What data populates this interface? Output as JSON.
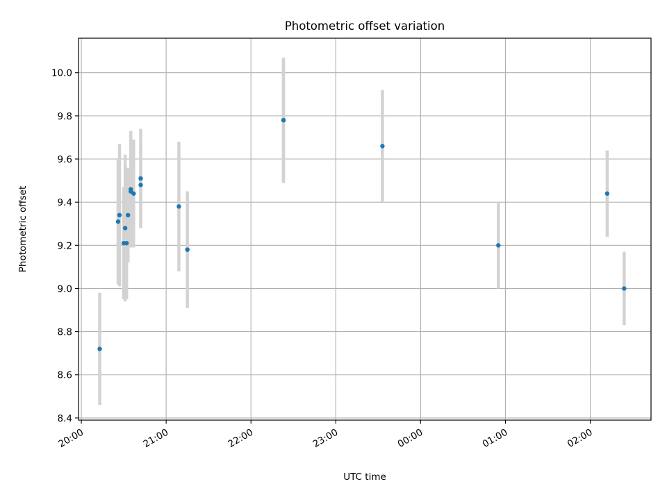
{
  "chart_data": {
    "type": "scatter",
    "title": "Photometric offset variation",
    "xlabel": "UTC time",
    "ylabel": "Photometric offset",
    "x_axis": {
      "kind": "time",
      "range": [
        "20:00",
        "02:40"
      ],
      "ticks": [
        "20:00",
        "21:00",
        "22:00",
        "23:00",
        "00:00",
        "01:00",
        "02:00"
      ]
    },
    "y_axis": {
      "range": [
        8.39,
        10.16
      ],
      "ticks": [
        "8.4",
        "8.6",
        "8.8",
        "9.0",
        "9.2",
        "9.4",
        "9.6",
        "9.8",
        "10.0"
      ]
    },
    "grid": true,
    "legend": false,
    "series": [
      {
        "marker_color": "#1f77b4",
        "errorbar_color": "#d3d3d3",
        "points": [
          {
            "time": "20:13",
            "y": 8.72,
            "yerr_low": 0.26,
            "yerr_high": 0.26
          },
          {
            "time": "20:26",
            "y": 9.31,
            "yerr_low": 0.29,
            "yerr_high": 0.29
          },
          {
            "time": "20:27",
            "y": 9.34,
            "yerr_low": 0.33,
            "yerr_high": 0.33
          },
          {
            "time": "20:30",
            "y": 9.21,
            "yerr_low": 0.26,
            "yerr_high": 0.26
          },
          {
            "time": "20:31",
            "y": 9.28,
            "yerr_low": 0.34,
            "yerr_high": 0.34
          },
          {
            "time": "20:32",
            "y": 9.21,
            "yerr_low": 0.26,
            "yerr_high": 0.26
          },
          {
            "time": "20:33",
            "y": 9.34,
            "yerr_low": 0.22,
            "yerr_high": 0.22
          },
          {
            "time": "20:35",
            "y": 9.45,
            "yerr_low": 0.25,
            "yerr_high": 0.25
          },
          {
            "time": "20:35",
            "y": 9.46,
            "yerr_low": 0.27,
            "yerr_high": 0.27
          },
          {
            "time": "20:37",
            "y": 9.44,
            "yerr_low": 0.25,
            "yerr_high": 0.25
          },
          {
            "time": "20:42",
            "y": 9.51,
            "yerr_low": 0.23,
            "yerr_high": 0.23
          },
          {
            "time": "20:42",
            "y": 9.48,
            "yerr_low": 0.2,
            "yerr_high": 0.2
          },
          {
            "time": "21:09",
            "y": 9.38,
            "yerr_low": 0.3,
            "yerr_high": 0.3
          },
          {
            "time": "21:15",
            "y": 9.18,
            "yerr_low": 0.27,
            "yerr_high": 0.27
          },
          {
            "time": "21:15",
            "y": 9.18,
            "yerr_low": 0.27,
            "yerr_high": 0.27
          },
          {
            "time": "22:23",
            "y": 9.78,
            "yerr_low": 0.29,
            "yerr_high": 0.29
          },
          {
            "time": "22:23",
            "y": 9.78,
            "yerr_low": 0.29,
            "yerr_high": 0.29
          },
          {
            "time": "23:33",
            "y": 9.66,
            "yerr_low": 0.26,
            "yerr_high": 0.26
          },
          {
            "time": "00:55",
            "y": 9.2,
            "yerr_low": 0.2,
            "yerr_high": 0.2
          },
          {
            "time": "02:12",
            "y": 9.44,
            "yerr_low": 0.2,
            "yerr_high": 0.2
          },
          {
            "time": "02:24",
            "y": 9.0,
            "yerr_low": 0.17,
            "yerr_high": 0.17
          }
        ]
      }
    ]
  }
}
